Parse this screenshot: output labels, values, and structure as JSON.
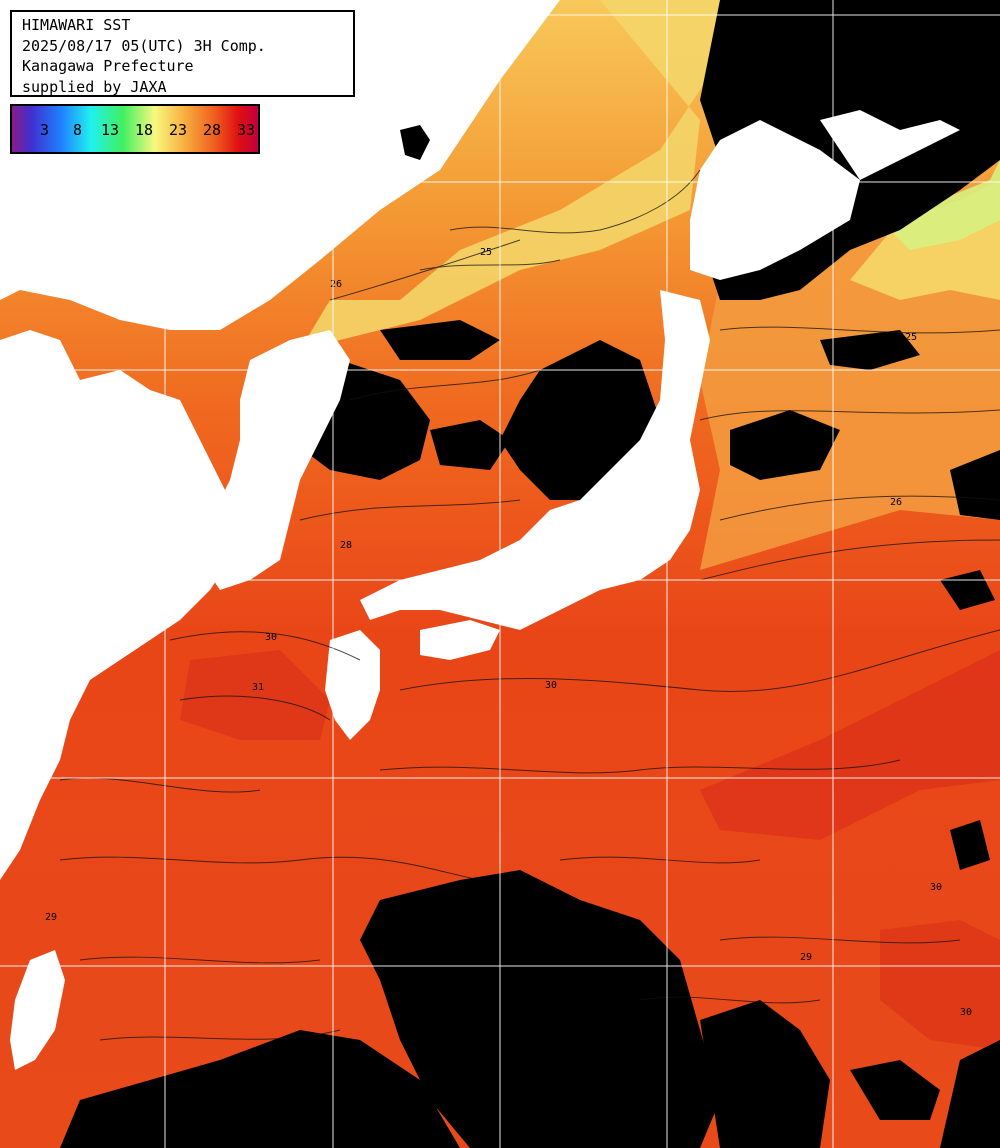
{
  "header": {
    "line1": "HIMAWARI SST",
    "line2": "2025/08/17 05(UTC) 3H Comp.",
    "line3": "Kanagawa Prefecture",
    "line4": "supplied by JAXA"
  },
  "legend": {
    "labels": [
      "3",
      "8",
      "13",
      "18",
      "23",
      "28",
      "33"
    ]
  },
  "contour_labels": [
    "25",
    "26",
    "28",
    "29",
    "30",
    "31"
  ],
  "colors": {
    "cloud": "#000000",
    "land": "#ffffff",
    "grid": "#ffffff",
    "warm_sea": "#e83010",
    "mid_sea": "#f06a1c",
    "cool_sea": "#f6b040",
    "cold_sea": "#f4e070"
  }
}
